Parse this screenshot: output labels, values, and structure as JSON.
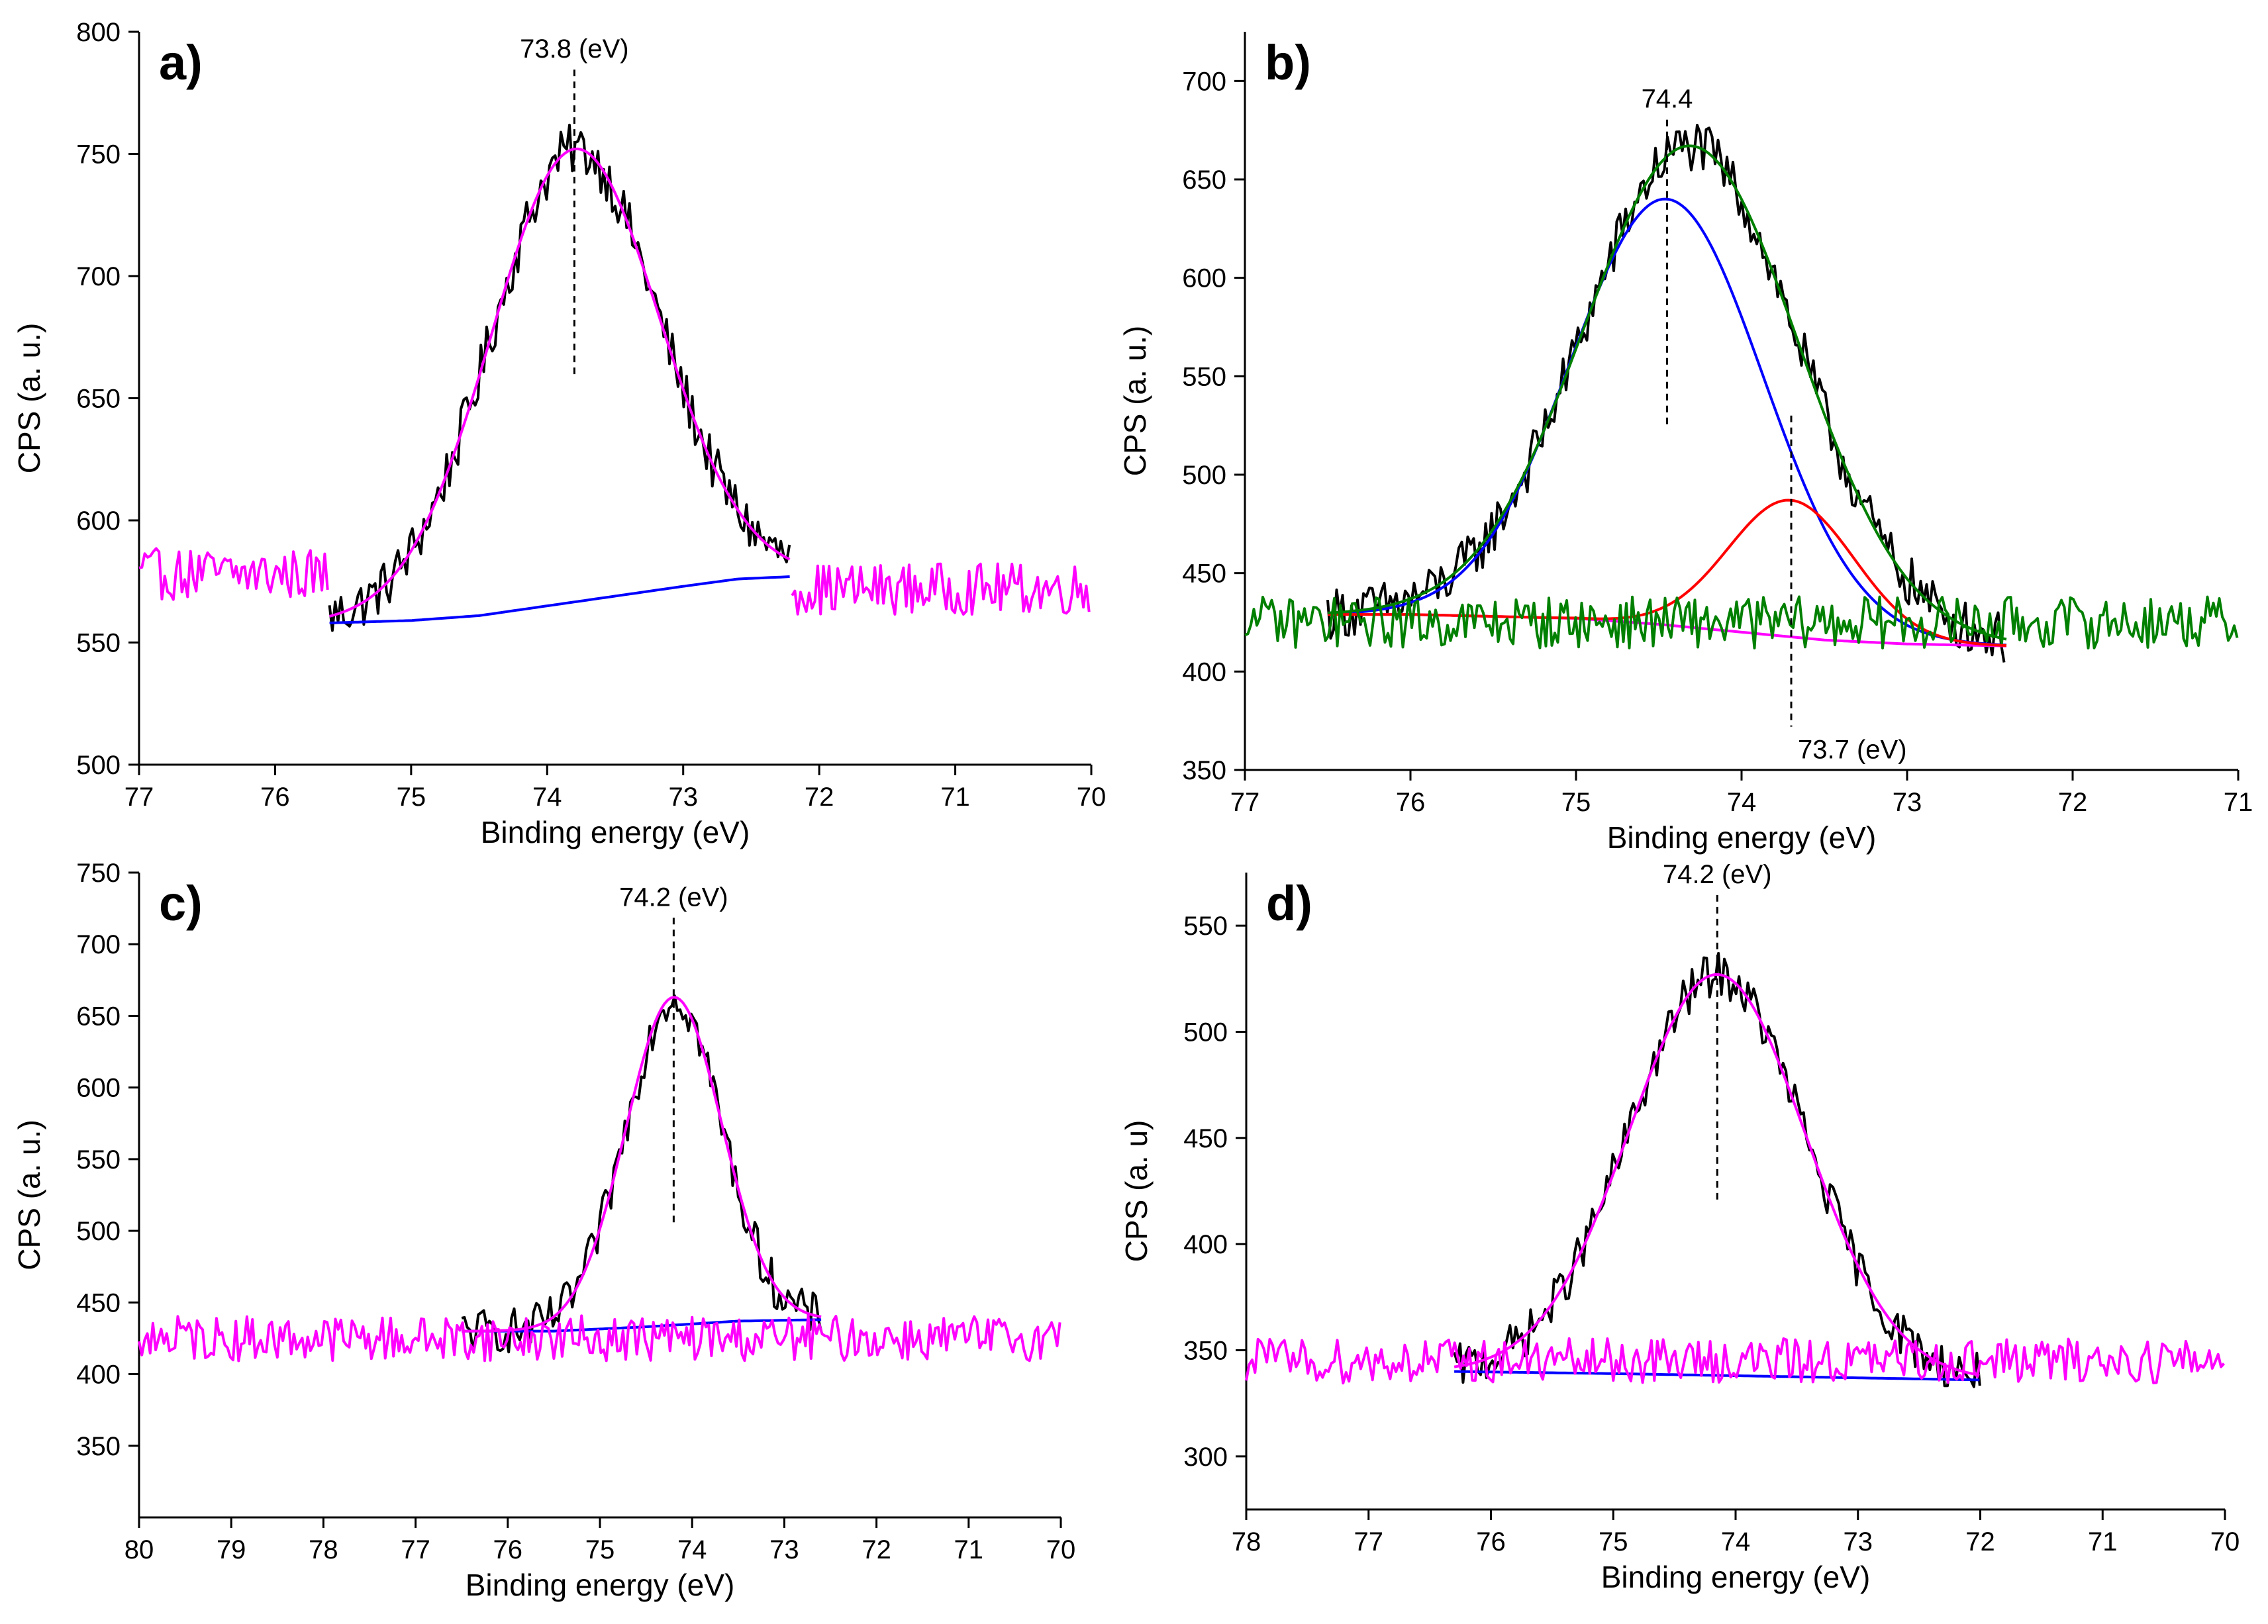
{
  "chart_data": [
    {
      "panel_label": "a)",
      "type": "line",
      "xlabel": "Binding energy (eV)",
      "ylabel": "CPS (a. u.)",
      "xlim": [
        77,
        70
      ],
      "ylim": [
        500,
        800
      ],
      "xticks": [
        "77",
        "76",
        "75",
        "74",
        "73",
        "72",
        "71",
        "70"
      ],
      "yticks": [
        "500",
        "550",
        "600",
        "650",
        "700",
        "750",
        "800"
      ],
      "annotations": [
        {
          "text": "73.8 (eV)",
          "x": 73.8
        }
      ],
      "series": [
        {
          "name": "raw",
          "color": "#000000",
          "style": "noisy",
          "range": [
            75.6,
            72.2
          ]
        },
        {
          "name": "background",
          "color": "#0000ff",
          "points": [
            [
              75.6,
              558
            ],
            [
              75.0,
              559
            ],
            [
              74.5,
              561
            ],
            [
              74.0,
              565
            ],
            [
              73.5,
              569
            ],
            [
              73.0,
              573
            ],
            [
              72.6,
              576
            ],
            [
              72.2,
              577
            ]
          ]
        },
        {
          "name": "fit",
          "color": "#ff00ff",
          "peak_center": 73.8,
          "peak_height": 752,
          "range": [
            75.6,
            72.2
          ]
        },
        {
          "name": "baseline-left",
          "color": "#ff00ff",
          "style": "noisy",
          "range": [
            77,
            75.6
          ],
          "level": 578
        },
        {
          "name": "baseline-right",
          "color": "#ff00ff",
          "style": "noisy",
          "range": [
            72.2,
            70
          ],
          "level": 572
        }
      ]
    },
    {
      "panel_label": "b)",
      "type": "line",
      "xlabel": "Binding energy (eV)",
      "ylabel": "CPS (a. u.)",
      "xlim": [
        77,
        71
      ],
      "ylim": [
        350,
        725
      ],
      "xticks": [
        "77",
        "76",
        "75",
        "74",
        "73",
        "72",
        "71"
      ],
      "yticks": [
        "350",
        "400",
        "450",
        "500",
        "550",
        "600",
        "650",
        "700"
      ],
      "annotations": [
        {
          "text": "74.4",
          "x": 74.45
        },
        {
          "text": "73.7 (eV)",
          "x": 73.7
        }
      ],
      "series": [
        {
          "name": "raw",
          "color": "#000000",
          "style": "noisy",
          "range": [
            76.5,
            72.4
          ]
        },
        {
          "name": "background",
          "color": "#ff00ff",
          "points": [
            [
              76.5,
              429
            ],
            [
              76.0,
              429
            ],
            [
              75.5,
              428
            ],
            [
              75.0,
              427
            ],
            [
              74.5,
              424
            ],
            [
              74.0,
              420
            ],
            [
              73.5,
              416
            ],
            [
              73.0,
              414
            ],
            [
              72.4,
              413
            ]
          ]
        },
        {
          "name": "component-74.4",
          "color": "#0000ff",
          "peak_center": 74.45,
          "peak_height": 640
        },
        {
          "name": "component-73.7",
          "color": "#ff0000",
          "peak_center": 73.7,
          "peak_height": 487
        },
        {
          "name": "envelope",
          "color": "#008000",
          "peak_center": 74.3,
          "peak_height": 667
        },
        {
          "name": "baseline",
          "color": "#008000",
          "style": "noisy",
          "range": [
            77,
            71
          ],
          "level": 425
        }
      ]
    },
    {
      "panel_label": "c)",
      "type": "line",
      "xlabel": "Binding energy (eV)",
      "ylabel": "CPS (a. u.)",
      "xlim": [
        80,
        70
      ],
      "ylim": [
        300,
        750
      ],
      "xticks": [
        "80",
        "79",
        "78",
        "77",
        "76",
        "75",
        "74",
        "73",
        "72",
        "71",
        "70"
      ],
      "yticks": [
        "350",
        "400",
        "450",
        "500",
        "550",
        "600",
        "650",
        "700",
        "750"
      ],
      "annotations": [
        {
          "text": "74.2 (eV)",
          "x": 74.2
        }
      ],
      "series": [
        {
          "name": "raw",
          "color": "#000000",
          "style": "noisy",
          "range": [
            76.5,
            72.6
          ]
        },
        {
          "name": "background",
          "color": "#0000ff",
          "points": [
            [
              76.5,
              430
            ],
            [
              75.5,
              430
            ],
            [
              74.5,
              433
            ],
            [
              73.5,
              437
            ],
            [
              72.6,
              438
            ]
          ]
        },
        {
          "name": "fit",
          "color": "#ff00ff",
          "peak_center": 74.2,
          "peak_height": 663
        },
        {
          "name": "baseline",
          "color": "#ff00ff",
          "style": "noisy",
          "range": [
            80,
            70
          ],
          "level": 425
        }
      ]
    },
    {
      "panel_label": "d)",
      "type": "line",
      "xlabel": "Binding energy (eV)",
      "ylabel": "CPS (a. u)",
      "xlim": [
        78,
        70
      ],
      "ylim": [
        275,
        575
      ],
      "xticks": [
        "78",
        "77",
        "76",
        "75",
        "74",
        "73",
        "72",
        "71",
        "70"
      ],
      "yticks": [
        "300",
        "350",
        "400",
        "450",
        "500",
        "550"
      ],
      "annotations": [
        {
          "text": "74.2 (eV)",
          "x": 74.15
        }
      ],
      "series": [
        {
          "name": "raw",
          "color": "#000000",
          "style": "noisy",
          "range": [
            76.3,
            72.0
          ]
        },
        {
          "name": "background",
          "color": "#0000ff",
          "points": [
            [
              76.3,
              340
            ],
            [
              75.0,
              339
            ],
            [
              74.0,
              338
            ],
            [
              73.0,
              337
            ],
            [
              72.0,
              336
            ]
          ]
        },
        {
          "name": "fit",
          "color": "#ff00ff",
          "peak_center": 74.15,
          "peak_height": 527
        },
        {
          "name": "baseline",
          "color": "#ff00ff",
          "style": "noisy",
          "range": [
            78,
            70
          ],
          "level": 345
        }
      ]
    }
  ]
}
